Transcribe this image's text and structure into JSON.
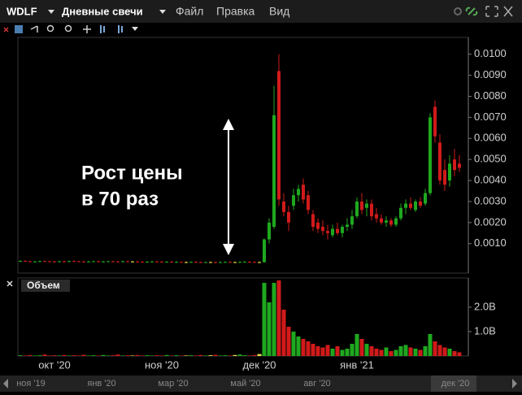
{
  "menu": {
    "symbol": "WDLF",
    "period": "Дневные свечи",
    "items": [
      "Файл",
      "Правка",
      "Вид"
    ]
  },
  "chart_data": [
    {
      "type": "candlestick",
      "annotation": [
        "Рост цены",
        "в 70 раз"
      ],
      "up_color": "#1fa81f",
      "down_color": "#d11a1a",
      "flat_color": "#e6e04a",
      "categories": [
        null,
        null,
        null,
        null,
        null,
        null,
        null,
        "окт '20",
        null,
        null,
        null,
        null,
        null,
        null,
        null,
        null,
        null,
        null,
        null,
        null,
        null,
        null,
        null,
        null,
        null,
        null,
        null,
        null,
        null,
        "ноя '20",
        null,
        null,
        null,
        null,
        null,
        null,
        null,
        null,
        null,
        null,
        null,
        null,
        null,
        null,
        null,
        null,
        null,
        null,
        null,
        "дек '20",
        null,
        null,
        null,
        null,
        null,
        null,
        null,
        null,
        null,
        null,
        null,
        null,
        null,
        null,
        null,
        null,
        null,
        null,
        null,
        "янв '21",
        null,
        null,
        null,
        null,
        null,
        null,
        null,
        null,
        null,
        null,
        null,
        null,
        null,
        null,
        null,
        null,
        null,
        null,
        null,
        null,
        null
      ],
      "open": [
        0.00015,
        0.00018,
        0.00016,
        0.00014,
        0.00015,
        0.00017,
        0.00016,
        0.00015,
        0.00014,
        0.00016,
        0.00015,
        0.00017,
        0.00016,
        0.00015,
        0.00013,
        0.00015,
        0.00016,
        0.00014,
        0.00015,
        0.00016,
        0.00015,
        0.00014,
        0.00016,
        0.00015,
        0.00015,
        0.00014,
        0.00013,
        0.00014,
        0.00015,
        0.00014,
        0.00013,
        0.00014,
        0.00012,
        0.00013,
        0.00012,
        0.00012,
        0.00013,
        0.00012,
        0.00011,
        0.00012,
        0.00012,
        0.00011,
        0.00012,
        0.00013,
        0.00012,
        0.00012,
        0.00013,
        0.00014,
        0.00013,
        0.00012,
        0.00012,
        0.0012,
        0.0018,
        0.0092,
        0.003,
        0.0025,
        0.0028,
        0.0033,
        0.0038,
        0.0033,
        0.0024,
        0.002,
        0.0018,
        0.0016,
        0.0014,
        0.0017,
        0.0015,
        0.0018,
        0.0019,
        0.0023,
        0.003,
        0.0027,
        0.0029,
        0.0024,
        0.0022,
        0.002,
        0.0021,
        0.0019,
        0.0022,
        0.0027,
        0.0029,
        0.0026,
        0.003,
        0.0029,
        0.0034,
        0.0075,
        0.0058,
        0.0045,
        0.004,
        0.005,
        0.0048
      ],
      "high": [
        0.00021,
        0.00021,
        0.00019,
        0.00018,
        0.0002,
        0.0002,
        0.00019,
        0.00018,
        0.00019,
        0.00019,
        0.0002,
        0.0002,
        0.00019,
        0.00018,
        0.00018,
        0.00019,
        0.00019,
        0.00018,
        0.00019,
        0.00019,
        0.00018,
        0.00019,
        0.00019,
        0.00018,
        0.00018,
        0.00017,
        0.00017,
        0.00018,
        0.00018,
        0.00017,
        0.00017,
        0.00017,
        0.00016,
        0.00016,
        0.00015,
        0.00016,
        0.00016,
        0.00015,
        0.00015,
        0.00015,
        0.00015,
        0.00015,
        0.00016,
        0.00016,
        0.00015,
        0.00016,
        0.00017,
        0.00017,
        0.00016,
        0.00015,
        0.00125,
        0.0022,
        0.0085,
        0.01,
        0.0034,
        0.0028,
        0.0036,
        0.0038,
        0.0041,
        0.0035,
        0.0026,
        0.0022,
        0.0021,
        0.0019,
        0.0019,
        0.002,
        0.0019,
        0.0022,
        0.0026,
        0.0032,
        0.0034,
        0.0031,
        0.0031,
        0.0027,
        0.0024,
        0.0023,
        0.0022,
        0.0023,
        0.0029,
        0.0031,
        0.0032,
        0.0031,
        0.0032,
        0.0036,
        0.0072,
        0.0078,
        0.0062,
        0.005,
        0.0052,
        0.0055,
        0.0052
      ],
      "low": [
        0.00012,
        0.00013,
        0.00011,
        0.00011,
        0.00012,
        0.00013,
        0.00012,
        0.00011,
        0.00011,
        0.00012,
        0.00012,
        0.00013,
        0.00012,
        0.0001,
        0.0001,
        0.00012,
        0.00011,
        0.00011,
        0.00012,
        0.00012,
        0.00011,
        0.00011,
        0.00012,
        0.00012,
        0.00011,
        0.0001,
        0.0001,
        0.00011,
        0.00011,
        0.0001,
        0.0001,
        9e-05,
        9e-05,
        9e-05,
        9e-05,
        9e-05,
        9e-05,
        8e-05,
        8e-05,
        9e-05,
        8e-05,
        8e-05,
        9e-05,
        9e-05,
        9e-05,
        9e-05,
        0.0001,
        0.0001,
        9e-05,
        9e-05,
        0.0001,
        0.001,
        0.0017,
        0.0028,
        0.0023,
        0.0016,
        0.0026,
        0.003,
        0.0029,
        0.0024,
        0.0016,
        0.0015,
        0.0014,
        0.0012,
        0.0013,
        0.0014,
        0.0013,
        0.0016,
        0.0017,
        0.0022,
        0.0024,
        0.0023,
        0.0021,
        0.002,
        0.0019,
        0.0018,
        0.0018,
        0.0018,
        0.0021,
        0.0024,
        0.0026,
        0.0025,
        0.0027,
        0.0028,
        0.0033,
        0.0058,
        0.0038,
        0.0035,
        0.0037,
        0.0042,
        0.0044
      ],
      "close": [
        0.00018,
        0.00016,
        0.00014,
        0.00015,
        0.00017,
        0.00016,
        0.00015,
        0.00014,
        0.00016,
        0.00015,
        0.00017,
        0.00016,
        0.00015,
        0.00013,
        0.00015,
        0.00016,
        0.00014,
        0.00015,
        0.00016,
        0.00015,
        0.00014,
        0.00016,
        0.00015,
        0.00015,
        0.00014,
        0.00013,
        0.00014,
        0.00015,
        0.00014,
        0.00013,
        0.00014,
        0.00012,
        0.00013,
        0.00012,
        0.00012,
        0.00013,
        0.00012,
        0.00011,
        0.00012,
        0.00012,
        0.00011,
        0.00012,
        0.00013,
        0.00012,
        0.00012,
        0.00013,
        0.00014,
        0.00013,
        0.00012,
        0.00012,
        0.0012,
        0.002,
        0.0071,
        0.0031,
        0.0025,
        0.002,
        0.0033,
        0.0036,
        0.0031,
        0.0026,
        0.0018,
        0.0017,
        0.0016,
        0.0015,
        0.0017,
        0.0015,
        0.0018,
        0.0019,
        0.0023,
        0.003,
        0.0026,
        0.0029,
        0.0023,
        0.0022,
        0.002,
        0.0021,
        0.0019,
        0.0022,
        0.0027,
        0.0029,
        0.0027,
        0.003,
        0.0028,
        0.0034,
        0.007,
        0.0061,
        0.004,
        0.0038,
        0.0048,
        0.0045,
        0.0046
      ],
      "ylim": [
        -0.0004,
        0.0108
      ],
      "yticks": [
        {
          "value": 0.001,
          "label": "0.0010"
        },
        {
          "value": 0.002,
          "label": "0.0020"
        },
        {
          "value": 0.003,
          "label": "0.0030"
        },
        {
          "value": 0.004,
          "label": "0.0040"
        },
        {
          "value": 0.005,
          "label": "0.0050"
        },
        {
          "value": 0.006,
          "label": "0.0060"
        },
        {
          "value": 0.007,
          "label": "0.0070"
        },
        {
          "value": 0.008,
          "label": "0.0080"
        },
        {
          "value": 0.009,
          "label": "0.0090"
        },
        {
          "value": 0.01,
          "label": "0.0100"
        }
      ]
    },
    {
      "type": "bar",
      "title": "Объем",
      "values": [
        30000000,
        20000000,
        40000000,
        20000000,
        30000000,
        60000000,
        20000000,
        30000000,
        20000000,
        40000000,
        20000000,
        30000000,
        20000000,
        50000000,
        20000000,
        30000000,
        20000000,
        40000000,
        20000000,
        30000000,
        60000000,
        20000000,
        30000000,
        20000000,
        40000000,
        20000000,
        30000000,
        20000000,
        30000000,
        20000000,
        40000000,
        20000000,
        30000000,
        20000000,
        20000000,
        30000000,
        20000000,
        40000000,
        20000000,
        30000000,
        50000000,
        20000000,
        30000000,
        20000000,
        40000000,
        60000000,
        30000000,
        20000000,
        40000000,
        80000000,
        3000000000,
        2200000000,
        3000000000,
        3100000000,
        1900000000,
        1200000000,
        1000000000,
        800000000,
        700000000,
        600000000,
        500000000,
        400000000,
        350000000,
        450000000,
        300000000,
        400000000,
        250000000,
        300000000,
        500000000,
        900000000,
        700000000,
        500000000,
        400000000,
        300000000,
        250000000,
        350000000,
        200000000,
        250000000,
        400000000,
        450000000,
        350000000,
        300000000,
        250000000,
        400000000,
        900000000,
        600000000,
        450000000,
        350000000,
        300000000,
        200000000,
        150000000
      ],
      "ylim": [
        0,
        3200000000
      ],
      "yticks": [
        {
          "value": 1000000000,
          "label": "1.0B"
        },
        {
          "value": 2000000000,
          "label": "2.0B"
        }
      ]
    }
  ],
  "navigator": {
    "labels": [
      "ноя '19",
      "янв '20",
      "мар '20",
      "май '20",
      "авг '20",
      "дек '20"
    ]
  }
}
